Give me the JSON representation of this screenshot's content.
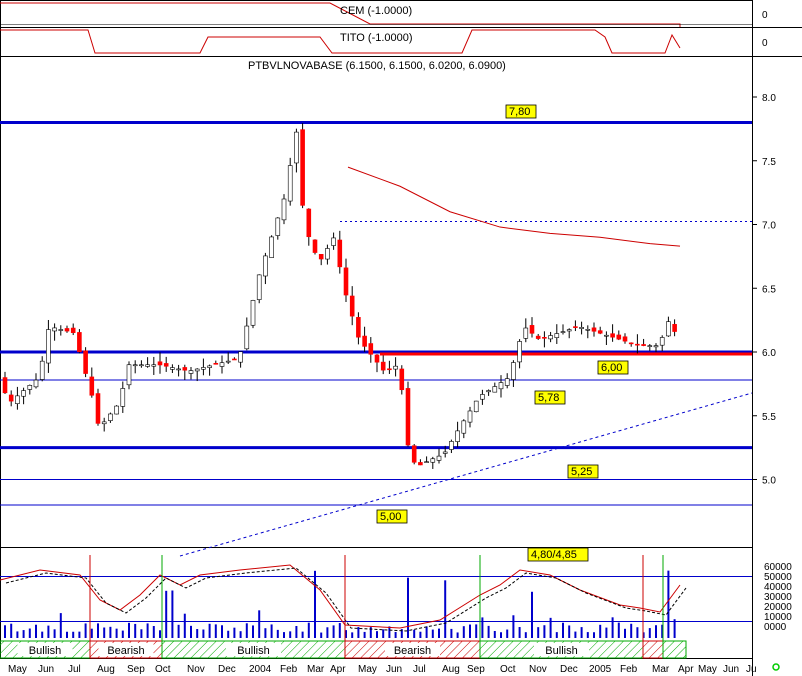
{
  "indicators": {
    "cem": {
      "label": "CEM (-1.0000)",
      "value_tick": "0"
    },
    "tito": {
      "label": "TITO (-1.0000)",
      "value_tick": "0"
    }
  },
  "main_title": "PTBVLNOVABASE (6.1500, 6.1500, 6.0200, 6.0900)",
  "colors": {
    "up": "#ffffff",
    "down": "#ff0000",
    "level": "#0000cc",
    "ma": "#cc0000",
    "volume": "#0000cc",
    "bullish": "#00aa00",
    "bearish": "#cc0000"
  },
  "chart_data": {
    "type": "candlestick",
    "title": "PTBVLNOVABASE (6.1500, 6.1500, 6.0200, 6.0900)",
    "ylim": [
      4.7,
      8.15
    ],
    "y_ticks": [
      "8.0",
      "7.5",
      "7.0",
      "6.5",
      "6.0",
      "5.5",
      "5.0"
    ],
    "x_labels": [
      "May",
      "Jun",
      "Jul",
      "Aug",
      "Sep",
      "Oct",
      "Nov",
      "Dec",
      "2004",
      "Feb",
      "Mar",
      "Apr",
      "May",
      "Jun",
      "Jul",
      "Aug",
      "Sep",
      "Oct",
      "Nov",
      "Dec",
      "2005",
      "Feb",
      "Mar",
      "Apr",
      "May",
      "Jun",
      "Ju"
    ],
    "levels": [
      {
        "value": 7.8,
        "label": "7,80"
      },
      {
        "value": 6.0,
        "label": "6,00"
      },
      {
        "value": 5.78,
        "label": "5,78"
      },
      {
        "value": 5.25,
        "label": "5,25"
      },
      {
        "value": 5.0,
        "label": "5,00"
      },
      {
        "value": 4.8,
        "label": "4,80/4,85"
      }
    ],
    "series": [
      {
        "name": "price",
        "anchors": [
          [
            0,
            5.8
          ],
          [
            10,
            5.6
          ],
          [
            40,
            5.8
          ],
          [
            50,
            6.2
          ],
          [
            75,
            6.15
          ],
          [
            95,
            5.6
          ],
          [
            100,
            5.4
          ],
          [
            120,
            5.6
          ],
          [
            130,
            5.9
          ],
          [
            160,
            5.9
          ],
          [
            190,
            5.85
          ],
          [
            240,
            5.95
          ],
          [
            260,
            6.6
          ],
          [
            285,
            7.2
          ],
          [
            298,
            7.75
          ],
          [
            305,
            7.0
          ],
          [
            320,
            6.7
          ],
          [
            335,
            6.9
          ],
          [
            345,
            6.5
          ],
          [
            360,
            6.1
          ],
          [
            385,
            5.85
          ],
          [
            400,
            5.9
          ],
          [
            410,
            5.2
          ],
          [
            418,
            5.1
          ],
          [
            430,
            5.15
          ],
          [
            445,
            5.2
          ],
          [
            460,
            5.4
          ],
          [
            480,
            5.65
          ],
          [
            510,
            5.8
          ],
          [
            525,
            6.2
          ],
          [
            540,
            6.1
          ],
          [
            560,
            6.15
          ],
          [
            580,
            6.2
          ],
          [
            600,
            6.15
          ],
          [
            620,
            6.1
          ],
          [
            640,
            6.05
          ],
          [
            660,
            6.05
          ],
          [
            670,
            6.25
          ],
          [
            680,
            6.09
          ]
        ]
      },
      {
        "name": "moving-average",
        "points": [
          [
            348,
            7.45
          ],
          [
            400,
            7.3
          ],
          [
            450,
            7.1
          ],
          [
            500,
            6.98
          ],
          [
            550,
            6.93
          ],
          [
            600,
            6.9
          ],
          [
            650,
            6.85
          ],
          [
            680,
            6.83
          ]
        ]
      }
    ],
    "volume": {
      "ticks": [
        "60000",
        "50000",
        "40000",
        "30000",
        "20000",
        "10000",
        "0000"
      ],
      "ylim": [
        0,
        65000
      ]
    },
    "trend_periods": [
      {
        "label": "Bullish",
        "start": "May",
        "end": "Jul",
        "class": "bull"
      },
      {
        "label": "Bearish",
        "start": "Aug",
        "end": "Oct",
        "class": "bear"
      },
      {
        "label": "Bullish",
        "start": "Oct",
        "end": "Apr",
        "class": "bull"
      },
      {
        "label": "Bearish",
        "start": "May",
        "end": "Sep",
        "class": "bear"
      },
      {
        "label": "Bullish",
        "start": "Sep",
        "end": "Feb",
        "class": "bull"
      },
      {
        "label": "",
        "start": "Mar",
        "end": "Mar",
        "class": "bear"
      },
      {
        "label": "",
        "start": "Apr",
        "end": "Apr",
        "class": "bull"
      }
    ]
  }
}
